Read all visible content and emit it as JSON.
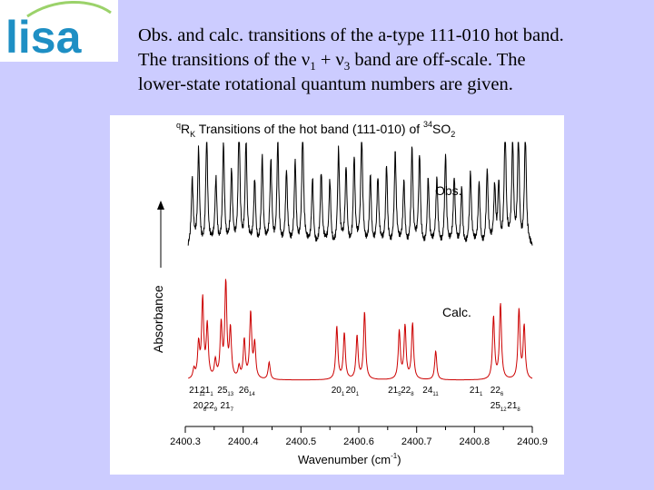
{
  "logo": {
    "text": "lisa",
    "color": "#1e8fc4",
    "accent": "#9bd26a"
  },
  "caption": {
    "line1": "Obs. and calc. transitions of the a-type 111-010 hot band.",
    "line2_a": "The transitions of the ν",
    "line2_sub1": "1",
    "line2_b": " + ν",
    "line2_sub3": "3",
    "line2_c": "  band are off-scale.  The",
    "line3": "lower-state rotational quantum numbers are given."
  },
  "chart_data": {
    "type": "line",
    "title": {
      "pre_sup": "q",
      "main": "R",
      "sub": "K",
      "text": " Transitions of the hot band (111-010) of ",
      "iso_sup": "34",
      "molecule": "SO",
      "mol_sub": "2"
    },
    "xlabel_main": "Wavenumber (cm",
    "xlabel_sup": "-1",
    "xlabel_end": ")",
    "ylabel": "Absorbance",
    "xlim": [
      2400.3,
      2400.9
    ],
    "xticks": [
      "2400.3",
      "2400.4",
      "2400.5",
      "2400.6",
      "2400.7",
      "2400.8",
      "2400.9"
    ],
    "series": [
      {
        "name": "Obs.",
        "color": "#000000",
        "baseline": 0.16,
        "peaks": [
          [
            2400.312,
            0.55
          ],
          [
            2400.323,
            0.8
          ],
          [
            2400.337,
            0.95
          ],
          [
            2400.353,
            0.55
          ],
          [
            2400.366,
            0.9
          ],
          [
            2400.38,
            0.6
          ],
          [
            2400.393,
            1.05
          ],
          [
            2400.405,
            0.85
          ],
          [
            2400.42,
            0.55
          ],
          [
            2400.433,
            0.75
          ],
          [
            2400.448,
            0.7
          ],
          [
            2400.46,
            0.9
          ],
          [
            2400.475,
            0.6
          ],
          [
            2400.49,
            0.72
          ],
          [
            2400.503,
            0.95
          ],
          [
            2400.52,
            0.58
          ],
          [
            2400.535,
            0.6
          ],
          [
            2400.55,
            0.55
          ],
          [
            2400.565,
            0.8
          ],
          [
            2400.578,
            0.65
          ],
          [
            2400.592,
            0.75
          ],
          [
            2400.605,
            0.92
          ],
          [
            2400.62,
            0.6
          ],
          [
            2400.633,
            0.55
          ],
          [
            2400.648,
            0.68
          ],
          [
            2400.663,
            0.78
          ],
          [
            2400.678,
            0.55
          ],
          [
            2400.692,
            0.82
          ],
          [
            2400.705,
            0.75
          ],
          [
            2400.72,
            0.58
          ],
          [
            2400.735,
            0.55
          ],
          [
            2400.75,
            0.78
          ],
          [
            2400.765,
            0.55
          ],
          [
            2400.778,
            0.5
          ],
          [
            2400.793,
            0.6
          ],
          [
            2400.808,
            0.55
          ],
          [
            2400.822,
            0.62
          ],
          [
            2400.835,
            0.48
          ],
          [
            2400.842,
            0.52
          ],
          [
            2400.853,
            1.0
          ],
          [
            2400.866,
            0.85
          ],
          [
            2400.876,
            0.95
          ],
          [
            2400.888,
            0.95
          ]
        ]
      },
      {
        "name": "Calc.",
        "color": "#cc0000",
        "baseline": 0.0,
        "peaks": [
          [
            2400.315,
            0.1
          ],
          [
            2400.323,
            0.35
          ],
          [
            2400.33,
            0.82
          ],
          [
            2400.338,
            0.55
          ],
          [
            2400.352,
            0.18
          ],
          [
            2400.362,
            0.55
          ],
          [
            2400.37,
            0.98
          ],
          [
            2400.378,
            0.5
          ],
          [
            2400.393,
            0.12
          ],
          [
            2400.402,
            0.4
          ],
          [
            2400.413,
            0.68
          ],
          [
            2400.42,
            0.36
          ],
          [
            2400.445,
            0.18
          ],
          [
            2400.562,
            0.55
          ],
          [
            2400.575,
            0.48
          ],
          [
            2400.597,
            0.45
          ],
          [
            2400.61,
            0.7
          ],
          [
            2400.67,
            0.5
          ],
          [
            2400.68,
            0.55
          ],
          [
            2400.693,
            0.58
          ],
          [
            2400.733,
            0.3
          ],
          [
            2400.833,
            0.65
          ],
          [
            2400.845,
            0.78
          ],
          [
            2400.877,
            0.72
          ],
          [
            2400.886,
            0.55
          ]
        ]
      }
    ],
    "annotations": [
      {
        "label": "21",
        "sub": "12",
        "x": 2400.319,
        "row": 1
      },
      {
        "label": "21",
        "sub": "1",
        "x": 2400.338,
        "row": 1
      },
      {
        "label": "25",
        "sub": "13",
        "x": 2400.368,
        "row": 1
      },
      {
        "label": "26",
        "sub": "14",
        "x": 2400.405,
        "row": 1
      },
      {
        "label": "20",
        "sub": "1",
        "x": 2400.565,
        "row": 1
      },
      {
        "label": "20",
        "sub": "1",
        "x": 2400.59,
        "row": 1
      },
      {
        "label": "21",
        "sub": "5",
        "x": 2400.663,
        "row": 1
      },
      {
        "label": "22",
        "sub": "8",
        "x": 2400.685,
        "row": 1
      },
      {
        "label": "24",
        "sub": "11",
        "x": 2400.723,
        "row": 1
      },
      {
        "label": "21",
        "sub": "1",
        "x": 2400.804,
        "row": 1
      },
      {
        "label": "22",
        "sub": "6",
        "x": 2400.84,
        "row": 1
      },
      {
        "label": "20",
        "sub": "6",
        "x": 2400.326,
        "row": 2
      },
      {
        "label": "22",
        "sub": "9",
        "x": 2400.345,
        "row": 2
      },
      {
        "label": "21",
        "sub": "7",
        "x": 2400.373,
        "row": 2
      },
      {
        "label": "25",
        "sub": "12",
        "x": 2400.84,
        "row": 2
      },
      {
        "label": "21",
        "sub": "8",
        "x": 2400.869,
        "row": 2
      }
    ]
  }
}
